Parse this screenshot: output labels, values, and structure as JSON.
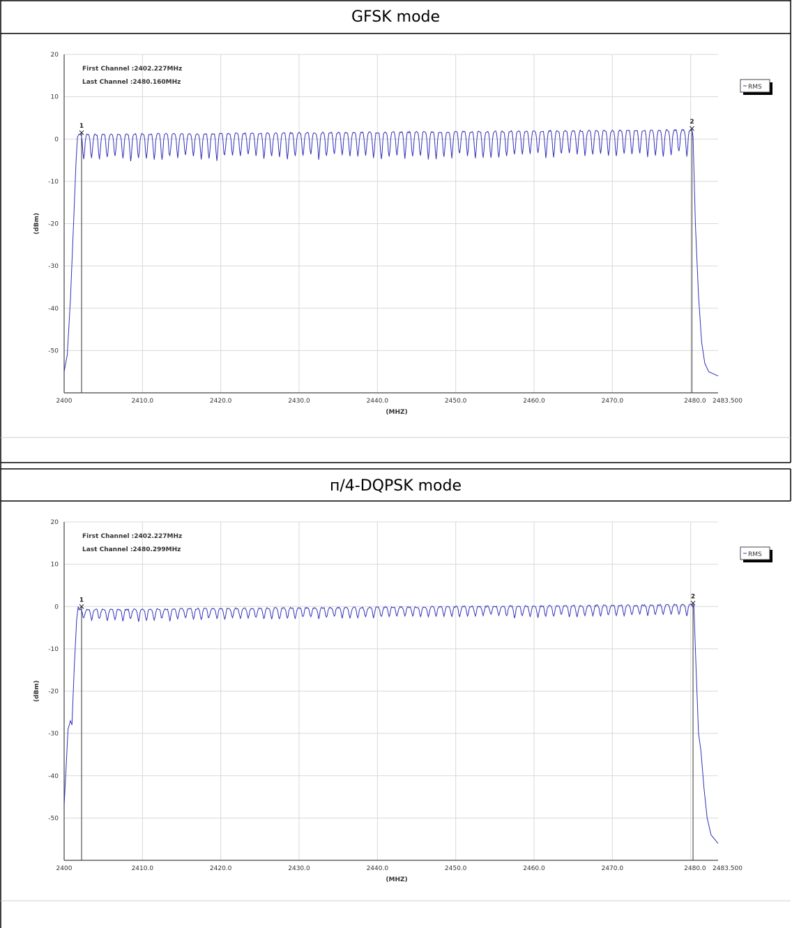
{
  "sections": [
    {
      "title": "GFSK mode"
    },
    {
      "title": "п/4-DQPSK mode"
    }
  ],
  "chart_data": [
    {
      "type": "line",
      "title": "GFSK mode",
      "annotations": [
        "First Channel :2402.227MHz",
        "Last Channel :2480.160MHz"
      ],
      "xlabel": "(MHZ)",
      "ylabel": "(dBm)",
      "xlim": [
        2400,
        2483.5
      ],
      "ylim": [
        -60,
        20
      ],
      "x_ticks": [
        2400,
        2410,
        2420,
        2430,
        2440,
        2450,
        2460,
        2470,
        2480.0,
        2483.5
      ],
      "x_tick_labels": [
        "2400",
        "2410.0",
        "2420.0",
        "2430.0",
        "2440.0",
        "2450.0",
        "2460.0",
        "2470.0",
        "2480.0",
        "2483.500"
      ],
      "y_ticks": [
        20,
        10,
        0,
        -10,
        -20,
        -30,
        -40,
        -50
      ],
      "y_tick_labels": [
        "20",
        "10",
        "0",
        "-10",
        "-20",
        "-30",
        "-40",
        "-50"
      ],
      "grid": true,
      "legend": {
        "entries": [
          "RMS"
        ],
        "placement": "top-right"
      },
      "series_color": "#3030b8",
      "markers": [
        {
          "label": "1",
          "x": 2402.227,
          "y": 1.5
        },
        {
          "label": "2",
          "x": 2480.16,
          "y": 2.5
        }
      ],
      "spectrum": {
        "channel_start": 2402,
        "channel_spacing": 1,
        "channel_count": 79,
        "peak_start": 1.2,
        "peak_end": 2.3,
        "null_depth": 5.0,
        "null_jitter": 1.4,
        "band_edges": [
          [
            2400,
            -55
          ],
          [
            2400.4,
            -51
          ],
          [
            2400.8,
            -38
          ],
          [
            2401.2,
            -20
          ],
          [
            2401.5,
            -6
          ],
          [
            2401.7,
            0.5
          ]
        ],
        "tail": [
          [
            2480.3,
            0.5
          ],
          [
            2480.6,
            -20
          ],
          [
            2481.0,
            -37
          ],
          [
            2481.4,
            -48
          ],
          [
            2481.8,
            -53
          ],
          [
            2482.3,
            -55
          ],
          [
            2483.5,
            -56
          ]
        ]
      }
    },
    {
      "type": "line",
      "title": "п/4-DQPSK mode",
      "annotations": [
        "First Channel :2402.227MHz",
        "Last Channel :2480.299MHz"
      ],
      "xlabel": "(MHZ)",
      "ylabel": "(dBm)",
      "xlim": [
        2400,
        2483.5
      ],
      "ylim": [
        -60,
        20
      ],
      "x_ticks": [
        2400,
        2410,
        2420,
        2430,
        2440,
        2450,
        2460,
        2470,
        2480.0,
        2483.5
      ],
      "x_tick_labels": [
        "2400",
        "2410.0",
        "2420.0",
        "2430.0",
        "2440.0",
        "2450.0",
        "2460.0",
        "2470.0",
        "2480.0",
        "2483.500"
      ],
      "y_ticks": [
        20,
        10,
        0,
        -10,
        -20,
        -30,
        -40,
        -50
      ],
      "y_tick_labels": [
        "20",
        "10",
        "0",
        "-10",
        "-20",
        "-30",
        "-40",
        "-50"
      ],
      "grid": true,
      "legend": {
        "entries": [
          "RMS"
        ],
        "placement": "top-right"
      },
      "series_color": "#3030b8",
      "markers": [
        {
          "label": "1",
          "x": 2402.227,
          "y": 0.0
        },
        {
          "label": "2",
          "x": 2480.299,
          "y": 0.8
        }
      ],
      "spectrum": {
        "channel_start": 2402,
        "channel_spacing": 1,
        "channel_count": 79,
        "peak_start": -0.6,
        "peak_end": 0.6,
        "null_depth": 2.0,
        "null_jitter": 0.8,
        "band_edges": [
          [
            2400,
            -47
          ],
          [
            2400.2,
            -40
          ],
          [
            2400.5,
            -29
          ],
          [
            2400.8,
            -27
          ],
          [
            2401.0,
            -28
          ],
          [
            2401.3,
            -14
          ],
          [
            2401.6,
            -3
          ],
          [
            2401.8,
            0
          ]
        ],
        "tail": [
          [
            2480.4,
            0.3
          ],
          [
            2480.7,
            -15
          ],
          [
            2481.0,
            -30
          ],
          [
            2481.3,
            -34
          ],
          [
            2481.7,
            -43
          ],
          [
            2482.1,
            -50
          ],
          [
            2482.6,
            -54
          ],
          [
            2483.5,
            -56
          ]
        ]
      }
    }
  ]
}
